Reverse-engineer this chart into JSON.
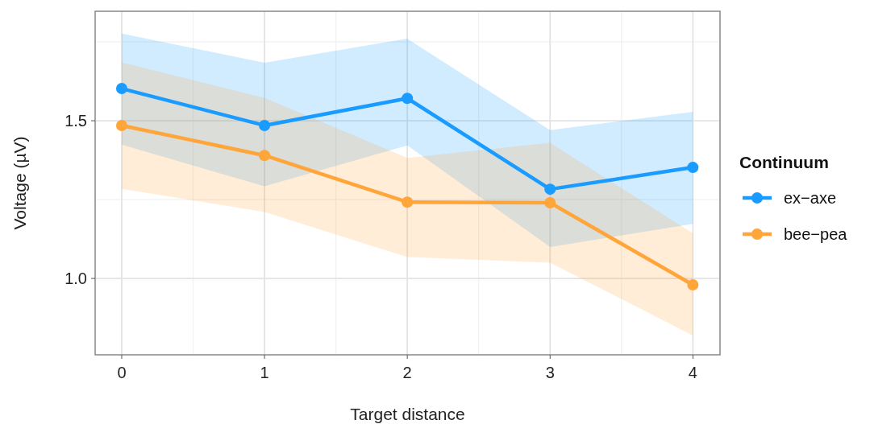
{
  "chart_data": {
    "type": "line",
    "xlabel": "Target distance",
    "ylabel": "Voltage (µV)",
    "legend_title": "Continuum",
    "x": [
      0,
      1,
      2,
      3,
      4
    ],
    "series": [
      {
        "name": "ex−axe",
        "color": "#1a9bff",
        "values": [
          1.602,
          1.485,
          1.571,
          1.283,
          1.352
        ],
        "lower": [
          1.424,
          1.292,
          1.422,
          1.1,
          1.173
        ],
        "upper": [
          1.776,
          1.684,
          1.76,
          1.47,
          1.528
        ]
      },
      {
        "name": "bee−pea",
        "color": "#ffa53a",
        "values": [
          1.485,
          1.39,
          1.242,
          1.24,
          0.98
        ],
        "lower": [
          1.284,
          1.211,
          1.068,
          1.05,
          0.819
        ],
        "upper": [
          1.685,
          1.572,
          1.382,
          1.43,
          1.143
        ]
      }
    ],
    "xlim": [
      -0.186,
      4.19
    ],
    "ylim": [
      0.758,
      1.847
    ],
    "xticks": [
      0,
      1,
      2,
      3,
      4
    ],
    "yticks": [
      {
        "value": 1,
        "label": "1.0"
      },
      1.5
    ],
    "grid": true,
    "legend": "right",
    "marker": "circle",
    "line_style": "solid"
  }
}
